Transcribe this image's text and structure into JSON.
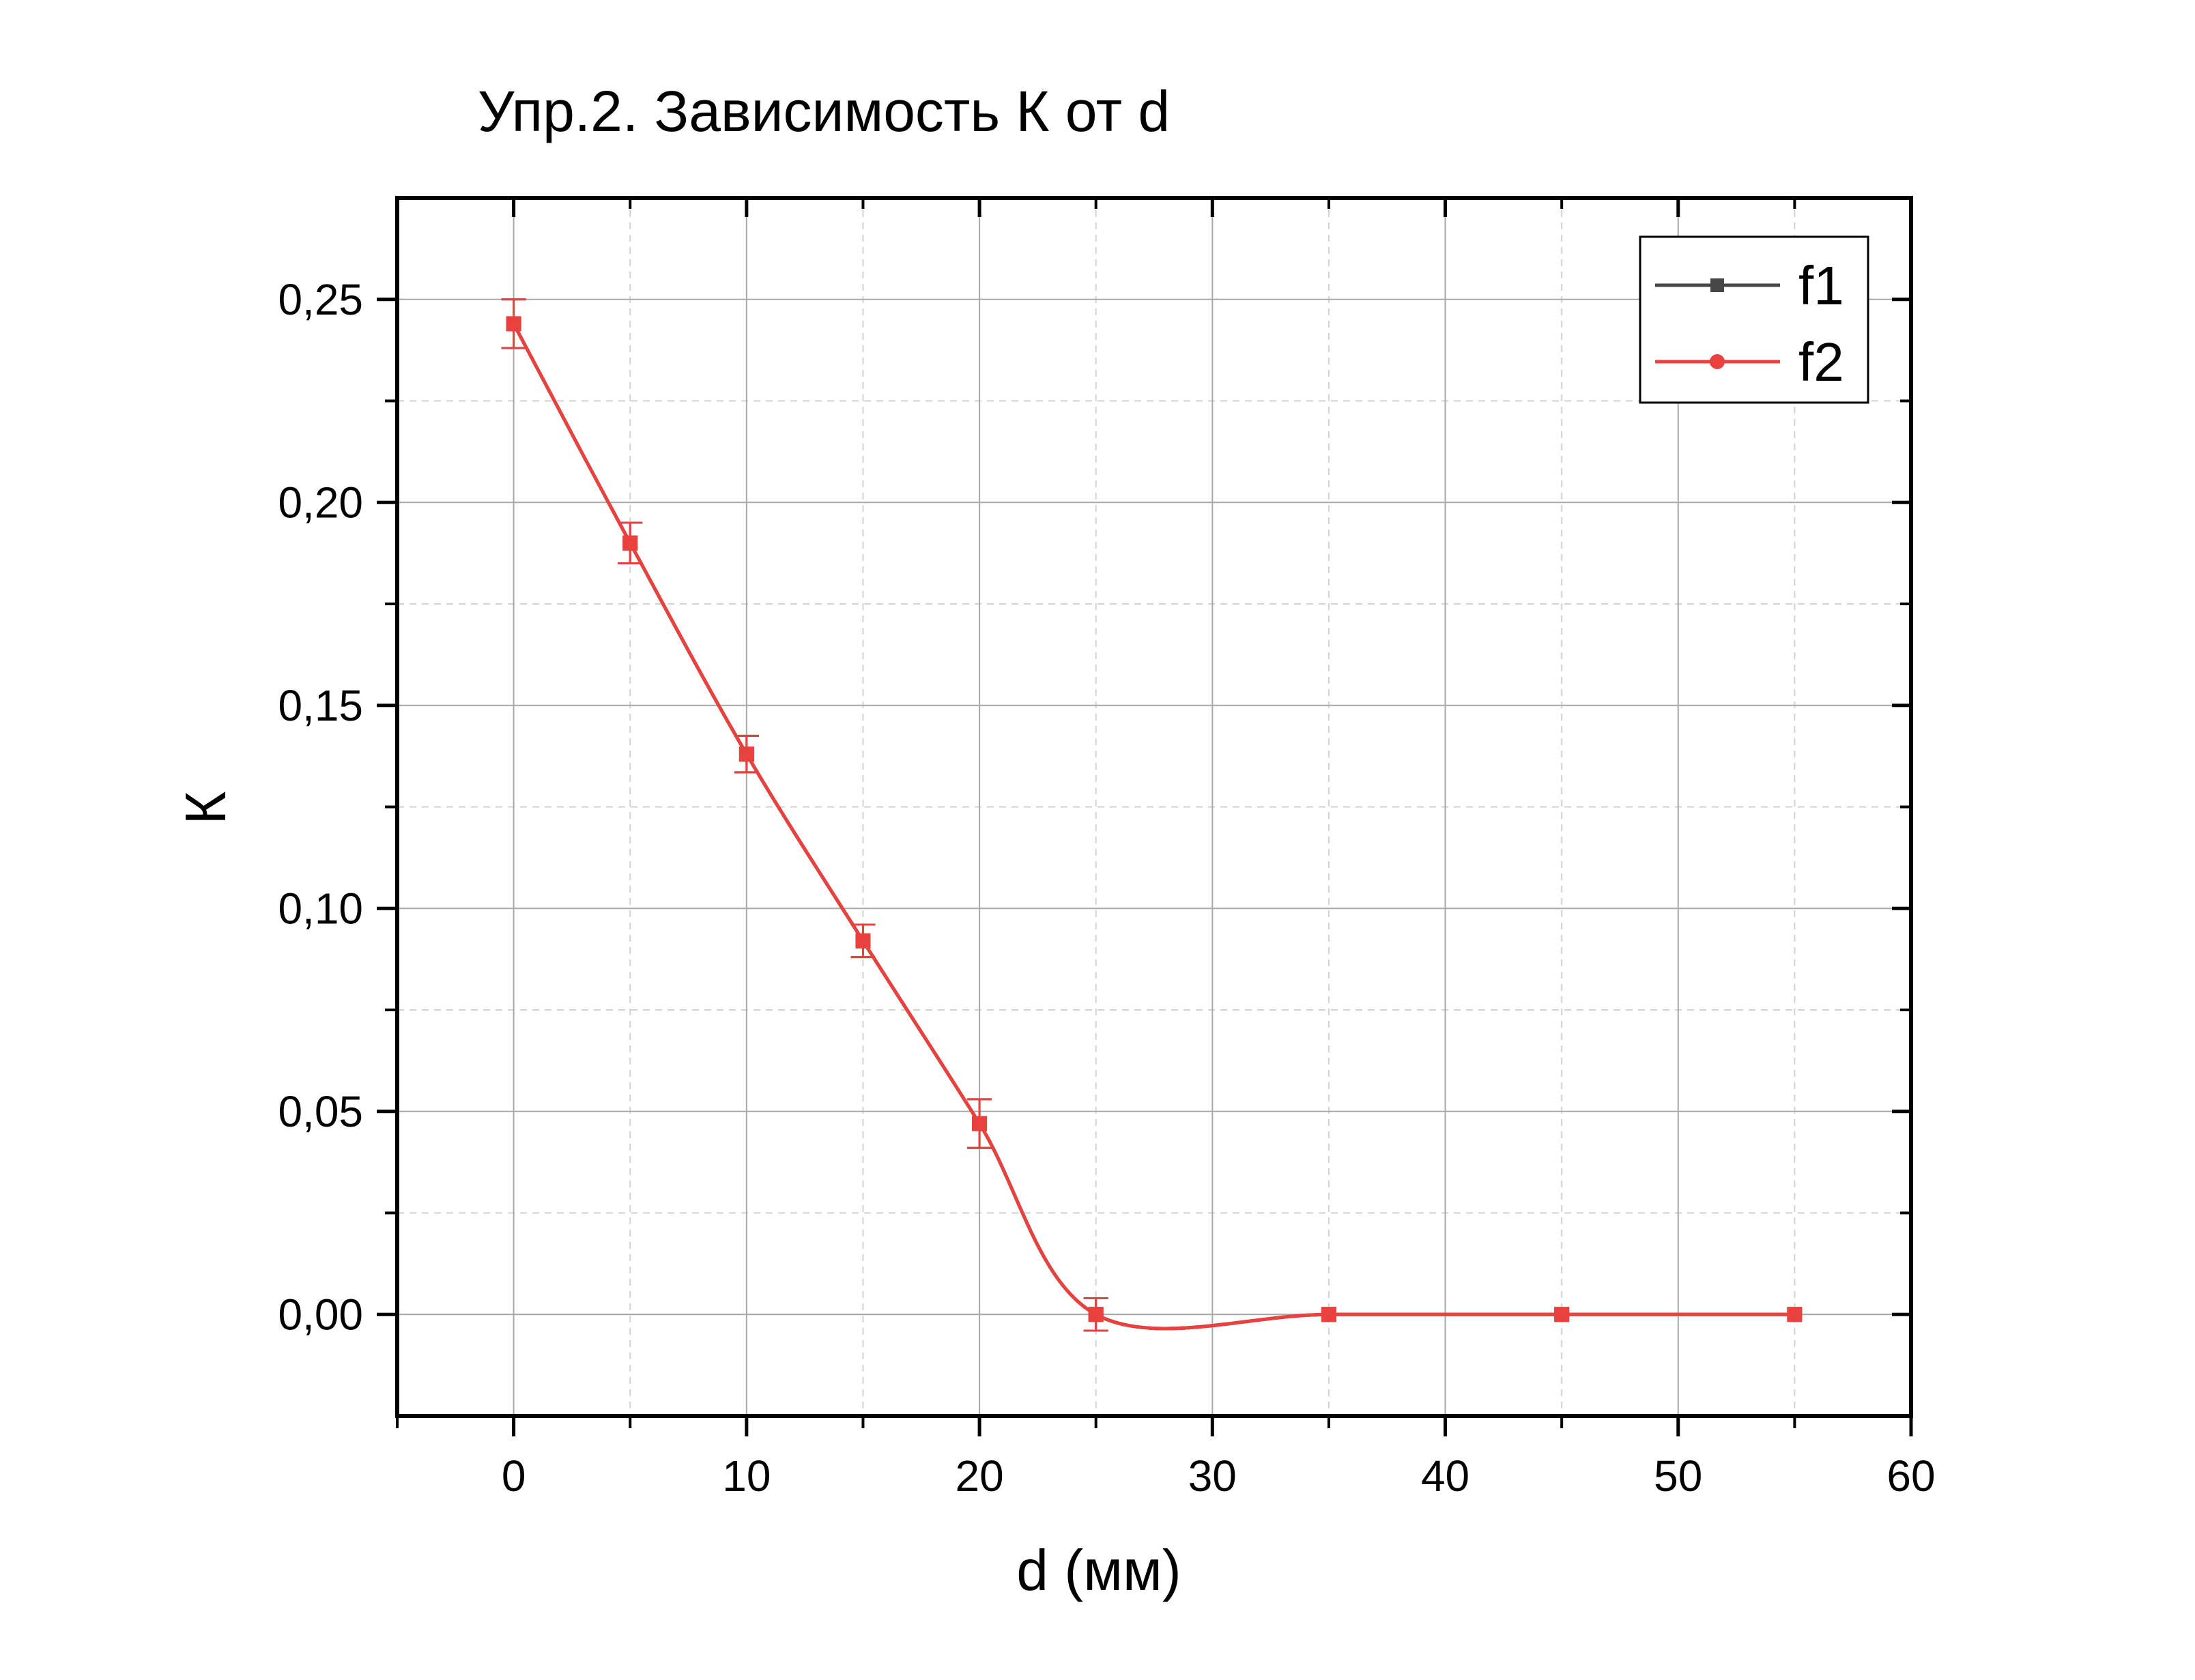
{
  "chart_data": {
    "type": "line",
    "title": "Упр.2. Зависимость К от d",
    "xlabel": "d (мм)",
    "ylabel": "К",
    "xlim": [
      -5,
      60
    ],
    "ylim": [
      -0.025,
      0.275
    ],
    "x_ticks": [
      0,
      10,
      20,
      30,
      40,
      50,
      60
    ],
    "x_tick_labels": [
      "0",
      "10",
      "20",
      "30",
      "40",
      "50",
      "60"
    ],
    "y_ticks": [
      0.0,
      0.05,
      0.1,
      0.15,
      0.2,
      0.25
    ],
    "y_tick_labels": [
      "0,00",
      "0,05",
      "0,10",
      "0,15",
      "0,20",
      "0,25"
    ],
    "grid": true,
    "legend_position": "top-right",
    "series": [
      {
        "name": "f1",
        "color": "#474747",
        "marker": "square",
        "x": [
          0,
          5,
          10,
          15,
          20,
          25,
          35,
          45,
          55
        ],
        "y": [
          0.244,
          0.19,
          0.138,
          0.092,
          0.047,
          0.0,
          0.0,
          0.0,
          0.0
        ],
        "error": [
          0.006,
          0.005,
          0.0045,
          0.004,
          0.006,
          0.004,
          0,
          0,
          0
        ]
      },
      {
        "name": "f2",
        "color": "#e8413e",
        "marker": "circle",
        "x": [
          0,
          5,
          10,
          15,
          20,
          25,
          35,
          45,
          55
        ],
        "y": [
          0.244,
          0.19,
          0.138,
          0.092,
          0.047,
          0.0,
          0.0,
          0.0,
          0.0
        ],
        "error": [
          0.006,
          0.005,
          0.0045,
          0.004,
          0.006,
          0.004,
          0,
          0,
          0
        ]
      }
    ]
  }
}
